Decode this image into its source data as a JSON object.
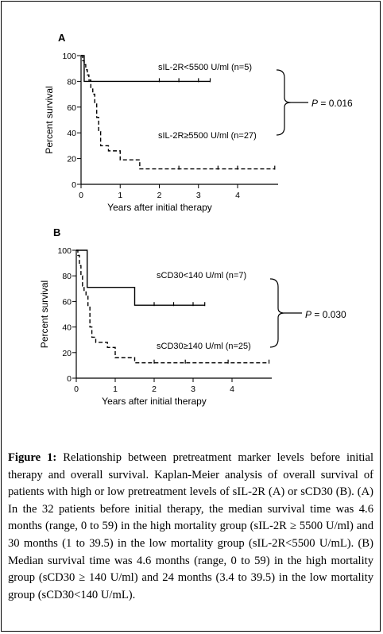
{
  "figure": {
    "caption_label": "Figure 1:",
    "caption_text": "Relationship between pretreatment marker levels before initial therapy and overall survival. Kaplan-Meier analysis of overall survival of patients with high or low pretreatment levels of sIL-2R (A) or sCD30 (B). (A) In the 32 patients before initial therapy, the median survival time was 4.6 months (range, 0 to 59) in the high mortality group (sIL-2R ≥ 5500 U/ml) and 30 months (1 to 39.5) in the low mortality group (sIL-2R<5500 U/mL). (B) Median survival time was 4.6 months (range, 0 to 59) in the high mortality group (sCD30 ≥ 140 U/ml) and 24 months (3.4 to 39.5) in the low mortality group (sCD30<140 U/mL)."
  },
  "chart_data": [
    {
      "type": "line",
      "panel": "A",
      "xlabel": "Years after initial therapy",
      "ylabel": "Percent survival",
      "xlim": [
        0,
        5
      ],
      "ylim": [
        0,
        100
      ],
      "xticks": [
        0,
        1,
        2,
        3,
        4
      ],
      "yticks": [
        0,
        20,
        40,
        60,
        80,
        100
      ],
      "p_value_label": "P",
      "p_value_text": "= 0.016",
      "series": [
        {
          "name": "sIL-2R<5500 U/ml (n=5)",
          "style": "solid",
          "steps": [
            [
              0,
              100
            ],
            [
              0.08,
              80
            ],
            [
              3.3,
              80
            ]
          ],
          "censor_x": [
            2.0,
            2.5,
            3.0,
            3.3
          ]
        },
        {
          "name": "sIL-2R≥5500 U/ml (n=27)",
          "style": "dashed",
          "steps": [
            [
              0,
              100
            ],
            [
              0.04,
              96
            ],
            [
              0.08,
              93
            ],
            [
              0.12,
              89
            ],
            [
              0.16,
              85
            ],
            [
              0.2,
              81
            ],
            [
              0.25,
              74
            ],
            [
              0.3,
              70
            ],
            [
              0.35,
              63
            ],
            [
              0.4,
              52
            ],
            [
              0.45,
              41
            ],
            [
              0.5,
              30
            ],
            [
              0.7,
              26
            ],
            [
              1.0,
              19
            ],
            [
              1.5,
              12
            ],
            [
              4.95,
              12
            ]
          ],
          "censor_x": [
            2.5,
            3.5,
            4.0,
            4.95
          ]
        }
      ]
    },
    {
      "type": "line",
      "panel": "B",
      "xlabel": "Years after initial therapy",
      "ylabel": "Percent survival",
      "xlim": [
        0,
        5
      ],
      "ylim": [
        0,
        100
      ],
      "xticks": [
        0,
        1,
        2,
        3,
        4
      ],
      "yticks": [
        0,
        20,
        40,
        60,
        80,
        100
      ],
      "p_value_label": "P",
      "p_value_text": "= 0.030",
      "series": [
        {
          "name": "sCD30<140 U/ml (n=7)",
          "style": "solid",
          "steps": [
            [
              0,
              100
            ],
            [
              0.28,
              71
            ],
            [
              1.5,
              57
            ],
            [
              3.3,
              57
            ]
          ],
          "censor_x": [
            2.0,
            2.5,
            3.0,
            3.3
          ]
        },
        {
          "name": "sCD30≥140 U/ml (n=25)",
          "style": "dashed",
          "steps": [
            [
              0,
              100
            ],
            [
              0.04,
              96
            ],
            [
              0.08,
              88
            ],
            [
              0.12,
              80
            ],
            [
              0.16,
              72
            ],
            [
              0.2,
              68
            ],
            [
              0.25,
              64
            ],
            [
              0.3,
              56
            ],
            [
              0.35,
              40
            ],
            [
              0.4,
              32
            ],
            [
              0.5,
              28
            ],
            [
              0.8,
              24
            ],
            [
              1.0,
              16
            ],
            [
              1.5,
              12
            ],
            [
              4.95,
              12
            ]
          ],
          "censor_x": [
            2.0,
            2.8,
            3.9,
            4.95
          ]
        }
      ]
    }
  ]
}
